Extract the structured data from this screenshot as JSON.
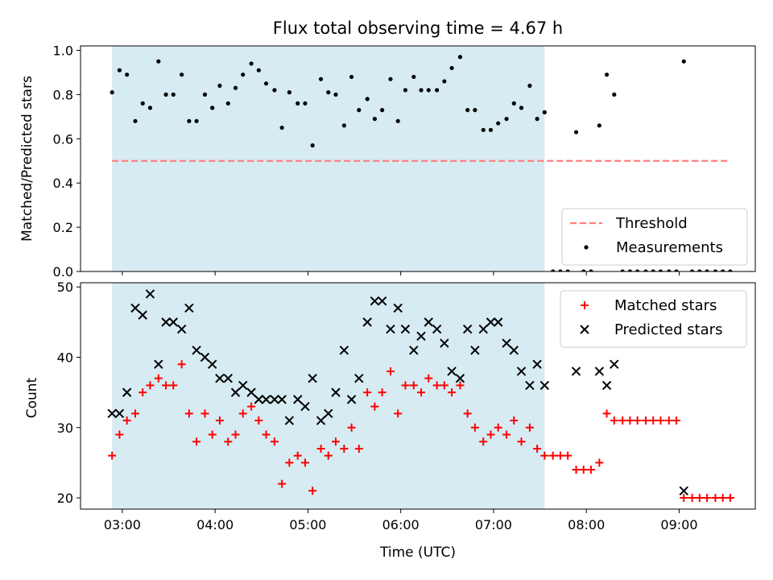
{
  "figure": {
    "title": "Flux total observing time = 4.67 h",
    "background": "#ffffff",
    "x_tick_labels": [
      "03:00",
      "04:00",
      "05:00",
      "06:00",
      "07:00",
      "08:00",
      "09:00"
    ]
  },
  "chart_data": [
    {
      "type": "scatter",
      "xlabel": "",
      "ylabel": "Matched/Predicted stars",
      "x_unit": "hours UTC",
      "xlim": [
        2.55,
        9.82
      ],
      "ylim": [
        0.0,
        1.02
      ],
      "yticks": [
        0.0,
        0.2,
        0.4,
        0.6,
        0.8,
        1.0
      ],
      "y_tick_labels": [
        "0.0",
        "0.2",
        "0.4",
        "0.6",
        "0.8",
        "1.0"
      ],
      "shaded_span": {
        "start": 2.89,
        "end": 7.55,
        "color": "#add8e6"
      },
      "threshold": {
        "label": "Threshold",
        "value": 0.5,
        "xrange": [
          2.89,
          9.55
        ],
        "color": "#ff7f7f"
      },
      "legend_position": "lower right",
      "series": [
        {
          "name": "Measurements",
          "marker": "dot",
          "color": "#000000",
          "points": [
            [
              2.89,
              0.81
            ],
            [
              2.97,
              0.91
            ],
            [
              3.05,
              0.89
            ],
            [
              3.14,
              0.68
            ],
            [
              3.22,
              0.76
            ],
            [
              3.3,
              0.74
            ],
            [
              3.39,
              0.95
            ],
            [
              3.47,
              0.8
            ],
            [
              3.55,
              0.8
            ],
            [
              3.64,
              0.89
            ],
            [
              3.72,
              0.68
            ],
            [
              3.8,
              0.68
            ],
            [
              3.89,
              0.8
            ],
            [
              3.97,
              0.74
            ],
            [
              4.05,
              0.84
            ],
            [
              4.14,
              0.76
            ],
            [
              4.22,
              0.83
            ],
            [
              4.3,
              0.89
            ],
            [
              4.39,
              0.94
            ],
            [
              4.47,
              0.91
            ],
            [
              4.55,
              0.85
            ],
            [
              4.64,
              0.82
            ],
            [
              4.72,
              0.65
            ],
            [
              4.8,
              0.81
            ],
            [
              4.89,
              0.76
            ],
            [
              4.97,
              0.76
            ],
            [
              5.05,
              0.57
            ],
            [
              5.14,
              0.87
            ],
            [
              5.22,
              0.81
            ],
            [
              5.3,
              0.8
            ],
            [
              5.39,
              0.66
            ],
            [
              5.47,
              0.88
            ],
            [
              5.55,
              0.73
            ],
            [
              5.64,
              0.78
            ],
            [
              5.72,
              0.69
            ],
            [
              5.8,
              0.73
            ],
            [
              5.89,
              0.87
            ],
            [
              5.97,
              0.68
            ],
            [
              6.05,
              0.82
            ],
            [
              6.14,
              0.88
            ],
            [
              6.22,
              0.82
            ],
            [
              6.3,
              0.82
            ],
            [
              6.39,
              0.82
            ],
            [
              6.47,
              0.86
            ],
            [
              6.55,
              0.92
            ],
            [
              6.64,
              0.97
            ],
            [
              6.72,
              0.73
            ],
            [
              6.8,
              0.73
            ],
            [
              6.89,
              0.64
            ],
            [
              6.97,
              0.64
            ],
            [
              7.05,
              0.67
            ],
            [
              7.14,
              0.69
            ],
            [
              7.22,
              0.76
            ],
            [
              7.3,
              0.74
            ],
            [
              7.39,
              0.84
            ],
            [
              7.47,
              0.69
            ],
            [
              7.55,
              0.72
            ],
            [
              7.64,
              0.0
            ],
            [
              7.72,
              0.0
            ],
            [
              7.8,
              0.0
            ],
            [
              7.89,
              0.63
            ],
            [
              7.97,
              0.0
            ],
            [
              8.05,
              0.0
            ],
            [
              8.14,
              0.66
            ],
            [
              8.22,
              0.89
            ],
            [
              8.3,
              0.8
            ],
            [
              8.39,
              0.0
            ],
            [
              8.47,
              0.0
            ],
            [
              8.55,
              0.0
            ],
            [
              8.64,
              0.0
            ],
            [
              8.72,
              0.0
            ],
            [
              8.8,
              0.0
            ],
            [
              8.89,
              0.0
            ],
            [
              8.97,
              0.0
            ],
            [
              9.05,
              0.95
            ],
            [
              9.14,
              0.0
            ],
            [
              9.22,
              0.0
            ],
            [
              9.3,
              0.0
            ],
            [
              9.39,
              0.0
            ],
            [
              9.47,
              0.0
            ],
            [
              9.55,
              0.0
            ]
          ]
        }
      ]
    },
    {
      "type": "scatter",
      "xlabel": "Time (UTC)",
      "ylabel": "Count",
      "x_unit": "hours UTC",
      "xlim": [
        2.55,
        9.82
      ],
      "ylim": [
        18.4,
        50.6
      ],
      "yticks": [
        20,
        30,
        40,
        50
      ],
      "y_tick_labels": [
        "20",
        "30",
        "40",
        "50"
      ],
      "xticks": [
        3,
        4,
        5,
        6,
        7,
        8,
        9
      ],
      "shaded_span": {
        "start": 2.89,
        "end": 7.55,
        "color": "#add8e6"
      },
      "legend_position": "upper right",
      "series": [
        {
          "name": "Matched stars",
          "marker": "plus",
          "color": "#ff0000",
          "points": [
            [
              2.89,
              26
            ],
            [
              2.97,
              29
            ],
            [
              3.05,
              31
            ],
            [
              3.14,
              32
            ],
            [
              3.22,
              35
            ],
            [
              3.3,
              36
            ],
            [
              3.39,
              37
            ],
            [
              3.47,
              36
            ],
            [
              3.55,
              36
            ],
            [
              3.64,
              39
            ],
            [
              3.72,
              32
            ],
            [
              3.8,
              28
            ],
            [
              3.89,
              32
            ],
            [
              3.97,
              29
            ],
            [
              4.05,
              31
            ],
            [
              4.14,
              28
            ],
            [
              4.22,
              29
            ],
            [
              4.3,
              32
            ],
            [
              4.39,
              33
            ],
            [
              4.47,
              31
            ],
            [
              4.55,
              29
            ],
            [
              4.64,
              28
            ],
            [
              4.72,
              22
            ],
            [
              4.8,
              25
            ],
            [
              4.89,
              26
            ],
            [
              4.97,
              25
            ],
            [
              5.05,
              21
            ],
            [
              5.14,
              27
            ],
            [
              5.22,
              26
            ],
            [
              5.3,
              28
            ],
            [
              5.39,
              27
            ],
            [
              5.47,
              30
            ],
            [
              5.55,
              27
            ],
            [
              5.64,
              35
            ],
            [
              5.72,
              33
            ],
            [
              5.8,
              35
            ],
            [
              5.89,
              38
            ],
            [
              5.97,
              32
            ],
            [
              6.05,
              36
            ],
            [
              6.14,
              36
            ],
            [
              6.22,
              35
            ],
            [
              6.3,
              37
            ],
            [
              6.39,
              36
            ],
            [
              6.47,
              36
            ],
            [
              6.55,
              35
            ],
            [
              6.64,
              36
            ],
            [
              6.72,
              32
            ],
            [
              6.8,
              30
            ],
            [
              6.89,
              28
            ],
            [
              6.97,
              29
            ],
            [
              7.05,
              30
            ],
            [
              7.14,
              29
            ],
            [
              7.22,
              31
            ],
            [
              7.3,
              28
            ],
            [
              7.39,
              30
            ],
            [
              7.47,
              27
            ],
            [
              7.55,
              26
            ],
            [
              7.64,
              26
            ],
            [
              7.72,
              26
            ],
            [
              7.8,
              26
            ],
            [
              7.89,
              24
            ],
            [
              7.97,
              24
            ],
            [
              8.05,
              24
            ],
            [
              8.14,
              25
            ],
            [
              8.22,
              32
            ],
            [
              8.3,
              31
            ],
            [
              8.39,
              31
            ],
            [
              8.47,
              31
            ],
            [
              8.55,
              31
            ],
            [
              8.64,
              31
            ],
            [
              8.72,
              31
            ],
            [
              8.8,
              31
            ],
            [
              8.89,
              31
            ],
            [
              8.97,
              31
            ],
            [
              9.05,
              20
            ],
            [
              9.14,
              20
            ],
            [
              9.22,
              20
            ],
            [
              9.3,
              20
            ],
            [
              9.39,
              20
            ],
            [
              9.47,
              20
            ],
            [
              9.55,
              20
            ]
          ]
        },
        {
          "name": "Predicted stars",
          "marker": "x",
          "color": "#000000",
          "points": [
            [
              2.89,
              32
            ],
            [
              2.97,
              32
            ],
            [
              3.05,
              35
            ],
            [
              3.14,
              47
            ],
            [
              3.22,
              46
            ],
            [
              3.3,
              49
            ],
            [
              3.39,
              39
            ],
            [
              3.47,
              45
            ],
            [
              3.55,
              45
            ],
            [
              3.64,
              44
            ],
            [
              3.72,
              47
            ],
            [
              3.8,
              41
            ],
            [
              3.89,
              40
            ],
            [
              3.97,
              39
            ],
            [
              4.05,
              37
            ],
            [
              4.14,
              37
            ],
            [
              4.22,
              35
            ],
            [
              4.3,
              36
            ],
            [
              4.39,
              35
            ],
            [
              4.47,
              34
            ],
            [
              4.55,
              34
            ],
            [
              4.64,
              34
            ],
            [
              4.72,
              34
            ],
            [
              4.8,
              31
            ],
            [
              4.89,
              34
            ],
            [
              4.97,
              33
            ],
            [
              5.05,
              37
            ],
            [
              5.14,
              31
            ],
            [
              5.22,
              32
            ],
            [
              5.3,
              35
            ],
            [
              5.39,
              41
            ],
            [
              5.47,
              34
            ],
            [
              5.55,
              37
            ],
            [
              5.64,
              45
            ],
            [
              5.72,
              48
            ],
            [
              5.8,
              48
            ],
            [
              5.89,
              44
            ],
            [
              5.97,
              47
            ],
            [
              6.05,
              44
            ],
            [
              6.14,
              41
            ],
            [
              6.22,
              43
            ],
            [
              6.3,
              45
            ],
            [
              6.39,
              44
            ],
            [
              6.47,
              42
            ],
            [
              6.55,
              38
            ],
            [
              6.64,
              37
            ],
            [
              6.72,
              44
            ],
            [
              6.8,
              41
            ],
            [
              6.89,
              44
            ],
            [
              6.97,
              45
            ],
            [
              7.05,
              45
            ],
            [
              7.14,
              42
            ],
            [
              7.22,
              41
            ],
            [
              7.3,
              38
            ],
            [
              7.39,
              36
            ],
            [
              7.47,
              39
            ],
            [
              7.55,
              36
            ],
            [
              7.89,
              38
            ],
            [
              8.14,
              38
            ],
            [
              8.22,
              36
            ],
            [
              8.3,
              39
            ],
            [
              9.05,
              21
            ]
          ]
        }
      ]
    }
  ]
}
